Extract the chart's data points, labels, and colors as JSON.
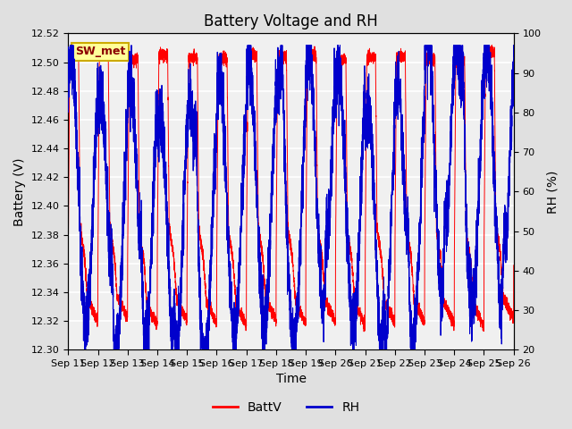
{
  "title": "Battery Voltage and RH",
  "xlabel": "Time",
  "ylabel_left": "Battery (V)",
  "ylabel_right": "RH (%)",
  "ylim_left": [
    12.3,
    12.52
  ],
  "ylim_right": [
    20,
    100
  ],
  "yticks_left": [
    12.3,
    12.32,
    12.34,
    12.36,
    12.38,
    12.4,
    12.42,
    12.44,
    12.46,
    12.48,
    12.5,
    12.52
  ],
  "yticks_right": [
    20,
    30,
    40,
    50,
    60,
    70,
    80,
    90,
    100
  ],
  "xtick_labels": [
    "Sep 11",
    "Sep 12",
    "Sep 13",
    "Sep 14",
    "Sep 15",
    "Sep 16",
    "Sep 17",
    "Sep 18",
    "Sep 19",
    "Sep 20",
    "Sep 21",
    "Sep 22",
    "Sep 23",
    "Sep 24",
    "Sep 25",
    "Sep 26"
  ],
  "color_batt": "#FF0000",
  "color_rh": "#0000CC",
  "legend_label_batt": "BattV",
  "legend_label_rh": "RH",
  "annotation_text": "SW_met",
  "annotation_bg": "#FFFF99",
  "annotation_border": "#CCAA00",
  "bg_color": "#E0E0E0",
  "plot_bg": "#F0F0F0",
  "grid_color": "#FFFFFF",
  "title_fontsize": 12,
  "axis_label_fontsize": 10,
  "tick_fontsize": 8,
  "legend_fontsize": 10,
  "num_days": 15,
  "pts_per_day": 480,
  "seed": 42
}
